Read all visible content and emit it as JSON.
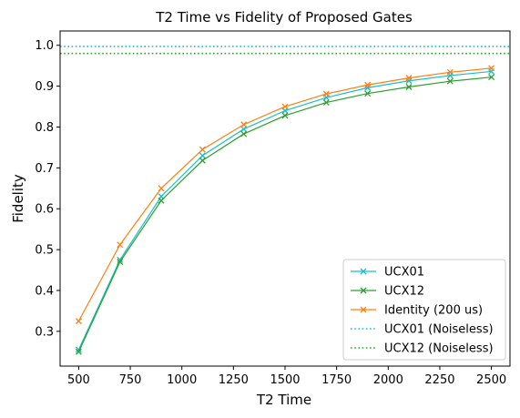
{
  "chart_data": {
    "type": "line",
    "title": "T2 Time vs Fidelity of Proposed Gates",
    "xlabel": "T2 Time",
    "ylabel": "Fidelity",
    "xlim": [
      410,
      2590
    ],
    "ylim": [
      0.215,
      1.035
    ],
    "xticks": [
      500,
      750,
      1000,
      1250,
      1500,
      1750,
      2000,
      2250,
      2500
    ],
    "yticks": [
      0.3,
      0.4,
      0.5,
      0.6,
      0.7,
      0.8,
      0.9,
      1.0
    ],
    "x": [
      500,
      700,
      900,
      1100,
      1300,
      1500,
      1700,
      1900,
      2100,
      2300,
      2500
    ],
    "series": [
      {
        "name": "UCX01",
        "color": "#17becf",
        "marker": "x",
        "values": [
          0.255,
          0.475,
          0.63,
          0.73,
          0.795,
          0.84,
          0.872,
          0.896,
          0.913,
          0.926,
          0.936
        ]
      },
      {
        "name": "UCX12",
        "color": "#2ca02c",
        "marker": "x",
        "values": [
          0.25,
          0.47,
          0.62,
          0.718,
          0.783,
          0.828,
          0.86,
          0.882,
          0.898,
          0.912,
          0.922
        ]
      },
      {
        "name": "Identity (200 us)",
        "color": "#ff7f0e",
        "marker": "x",
        "values": [
          0.325,
          0.512,
          0.65,
          0.745,
          0.806,
          0.85,
          0.881,
          0.903,
          0.92,
          0.934,
          0.944
        ]
      }
    ],
    "reference_lines": [
      {
        "name": "UCX01 (Noiseless)",
        "color": "#17becf",
        "y": 0.997
      },
      {
        "name": "UCX12 (Noiseless)",
        "color": "#2ca02c",
        "y": 0.98
      }
    ],
    "legend_position": "lower-right",
    "grid": false
  }
}
